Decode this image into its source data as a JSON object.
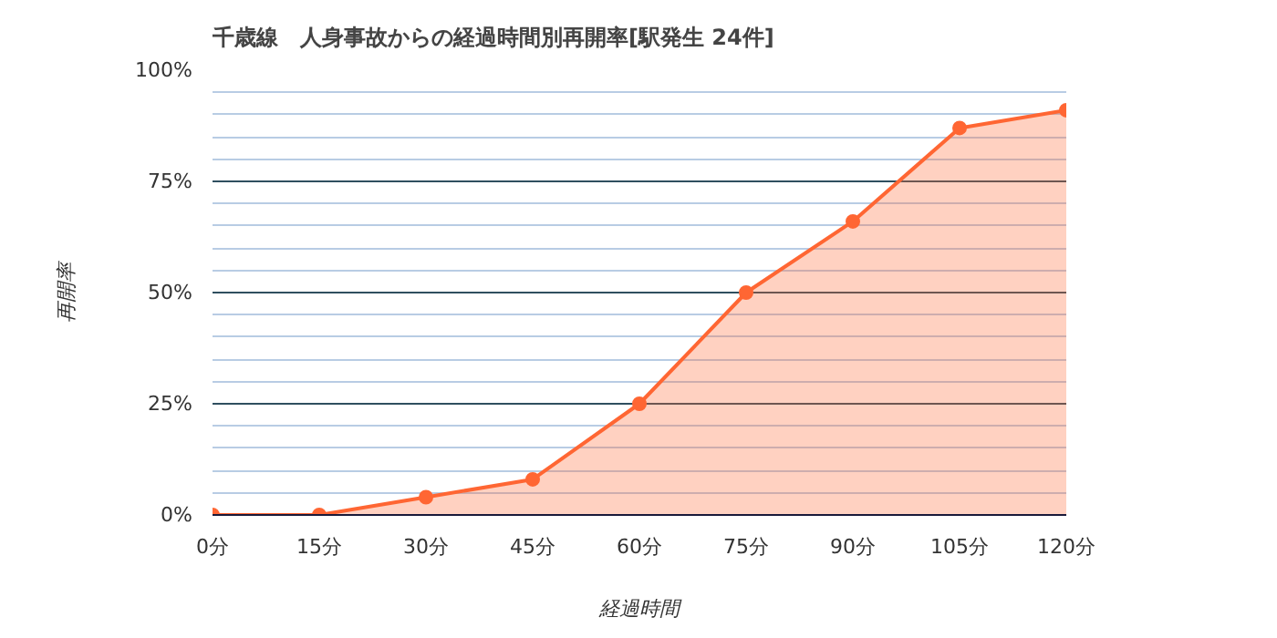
{
  "chart_data": {
    "type": "area",
    "title": "千歳線　人身事故からの経過時間別再開率[駅発生 24件]",
    "categories": [
      "0分",
      "15分",
      "30分",
      "45分",
      "60分",
      "75分",
      "90分",
      "105分",
      "120分"
    ],
    "series": [
      {
        "color": "#ff6633",
        "values": [
          0,
          0,
          4,
          8,
          25,
          50,
          66,
          87,
          91
        ]
      }
    ],
    "xlabel": "経過時間",
    "ylabel": "再開率",
    "ylim": [
      0,
      100
    ],
    "yticks": [
      {
        "value": 0,
        "label": "0%"
      },
      {
        "value": 5,
        "label": null
      },
      {
        "value": 10,
        "label": null
      },
      {
        "value": 15,
        "label": null
      },
      {
        "value": 20,
        "label": null
      },
      {
        "value": 25,
        "label": "25%"
      },
      {
        "value": 30,
        "label": null
      },
      {
        "value": 35,
        "label": null
      },
      {
        "value": 40,
        "label": null
      },
      {
        "value": 45,
        "label": null
      },
      {
        "value": 50,
        "label": "50%"
      },
      {
        "value": 55,
        "label": null
      },
      {
        "value": 60,
        "label": null
      },
      {
        "value": 65,
        "label": null
      },
      {
        "value": 70,
        "label": null
      },
      {
        "value": 75,
        "label": "75%"
      },
      {
        "value": 80,
        "label": null
      },
      {
        "value": 85,
        "label": null
      },
      {
        "value": 90,
        "label": null
      },
      {
        "value": 95,
        "label": null
      },
      {
        "value": 100,
        "label": "100%"
      }
    ],
    "grid": "y",
    "marker": "circle"
  }
}
